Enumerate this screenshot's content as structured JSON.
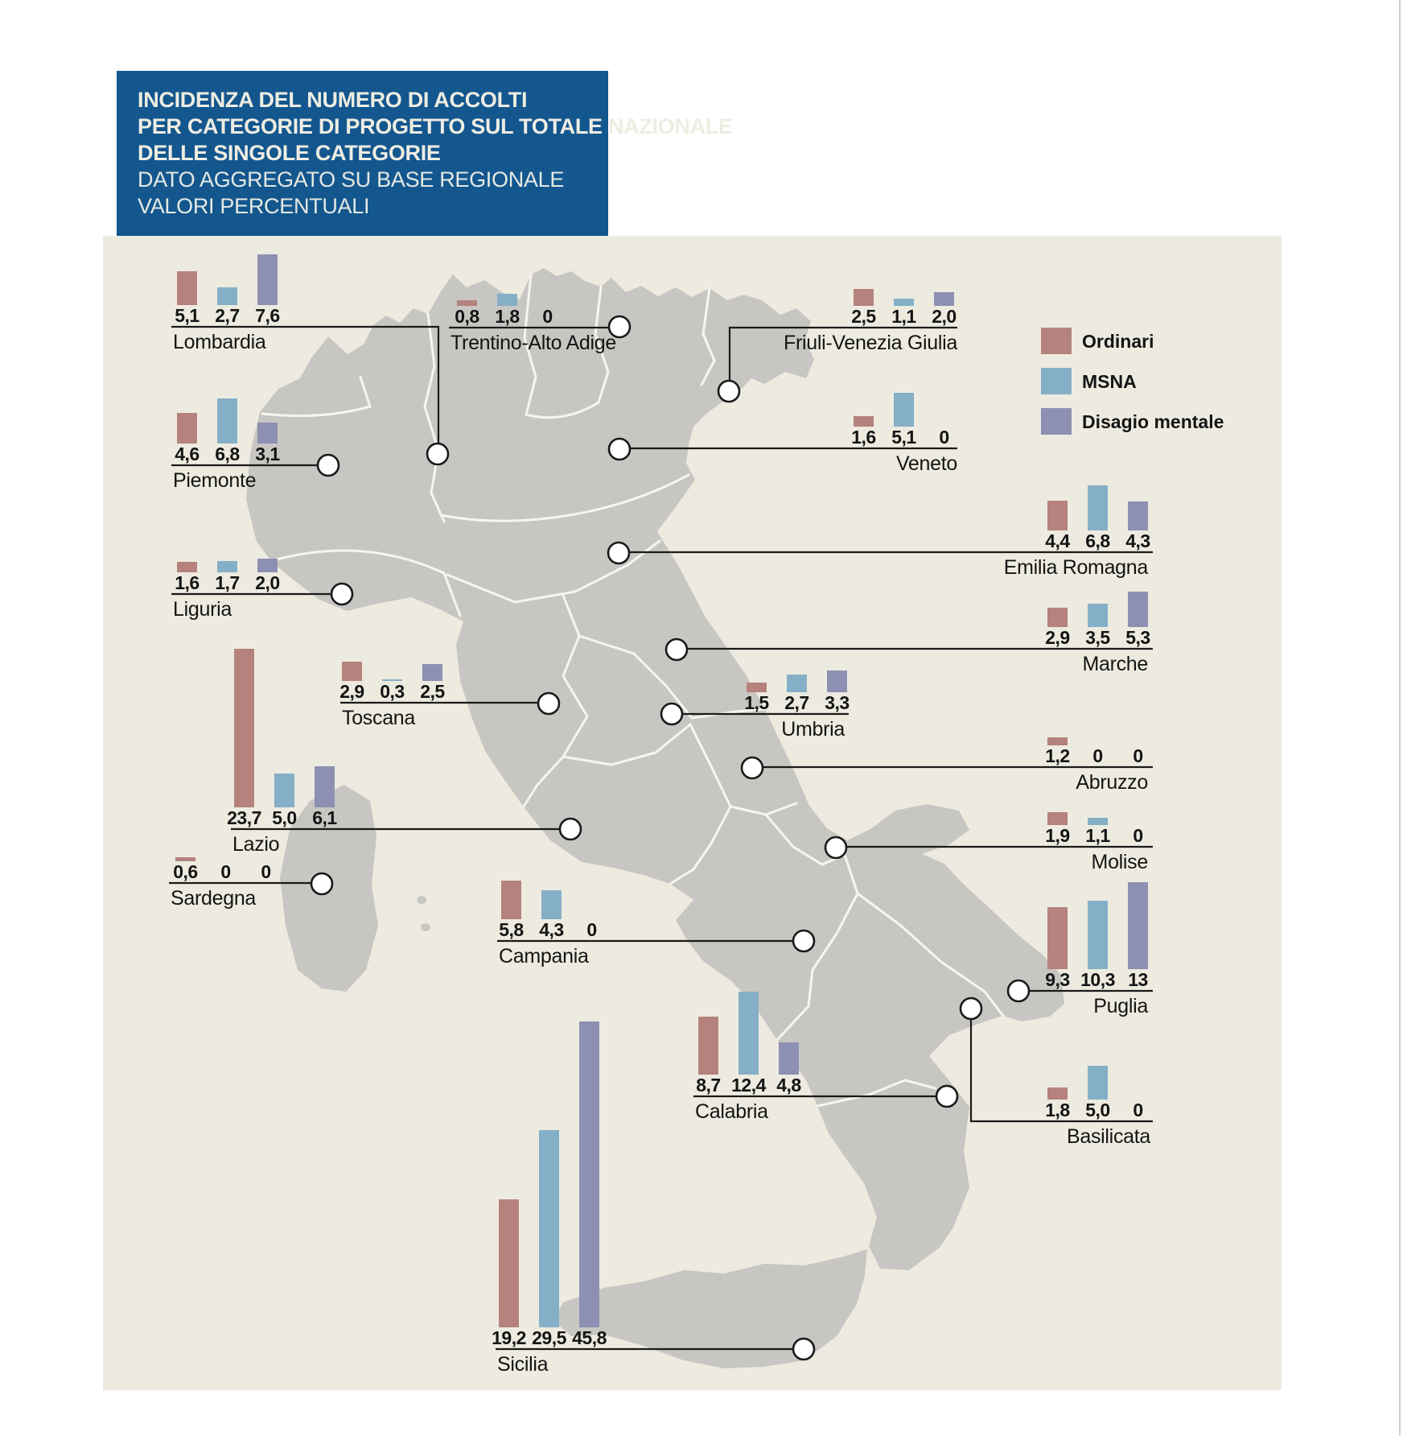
{
  "header": {
    "title_lines": [
      "INCIDENZA DEL NUMERO DI ACCOLTI",
      "PER CATEGORIE DI PROGETTO SUL TOTALE NAZIONALE",
      "DELLE SINGOLE CATEGORIE"
    ],
    "subtitle_lines": [
      "DATO AGGREGATO SU BASE REGIONALE",
      "VALORI PERCENTUALI"
    ]
  },
  "legend": {
    "items": [
      {
        "label": "Ordinari",
        "color": "#b5827d"
      },
      {
        "label": "MSNA",
        "color": "#85afc7"
      },
      {
        "label": "Disagio mentale",
        "color": "#8d90b2"
      }
    ]
  },
  "map": {
    "land_color": "#c8c6c2",
    "panel_color": "#edebe0",
    "border_color": "#f6f5ee",
    "header_color": "#14578f"
  },
  "chart_data": {
    "type": "bar",
    "unit": "percent",
    "title": "Incidenza del numero di accolti per categorie di progetto sul totale nazionale delle singole categorie",
    "subtitle": "Dato aggregato su base regionale, valori percentuali",
    "legend_position": "right",
    "categories": [
      "Lombardia",
      "Trentino-Alto Adige",
      "Friuli-Venezia Giulia",
      "Piemonte",
      "Veneto",
      "Liguria",
      "Emilia Romagna",
      "Toscana",
      "Marche",
      "Umbria",
      "Abruzzo",
      "Lazio",
      "Molise",
      "Campania",
      "Puglia",
      "Sardegna",
      "Calabria",
      "Basilicata",
      "Sicilia"
    ],
    "series": [
      {
        "name": "Ordinari",
        "values": [
          5.1,
          0.8,
          2.5,
          4.6,
          1.6,
          1.6,
          4.4,
          2.9,
          2.9,
          1.5,
          1.2,
          23.7,
          1.9,
          5.8,
          9.3,
          0.6,
          8.7,
          1.8,
          19.2
        ]
      },
      {
        "name": "MSNA",
        "values": [
          2.7,
          1.8,
          1.1,
          6.8,
          5.1,
          1.7,
          6.8,
          0.3,
          3.5,
          2.7,
          0,
          5.0,
          1.1,
          4.3,
          10.3,
          0,
          12.4,
          5.0,
          29.5
        ]
      },
      {
        "name": "Disagio mentale",
        "values": [
          7.6,
          0,
          2.0,
          3.1,
          0,
          2.0,
          4.3,
          2.5,
          5.3,
          3.3,
          0,
          6.1,
          0,
          0,
          13,
          0,
          4.8,
          0,
          45.8
        ]
      }
    ]
  },
  "regions": [
    {
      "name": "Lombardia",
      "values": [
        "5,1",
        "2,7",
        "7,6"
      ]
    },
    {
      "name": "Trentino-Alto Adige",
      "values": [
        "0,8",
        "1,8",
        "0"
      ]
    },
    {
      "name": "Friuli-Venezia Giulia",
      "values": [
        "2,5",
        "1,1",
        "2,0"
      ]
    },
    {
      "name": "Piemonte",
      "values": [
        "4,6",
        "6,8",
        "3,1"
      ]
    },
    {
      "name": "Veneto",
      "values": [
        "1,6",
        "5,1",
        "0"
      ]
    },
    {
      "name": "Liguria",
      "values": [
        "1,6",
        "1,7",
        "2,0"
      ]
    },
    {
      "name": "Emilia Romagna",
      "values": [
        "4,4",
        "6,8",
        "4,3"
      ]
    },
    {
      "name": "Toscana",
      "values": [
        "2,9",
        "0,3",
        "2,5"
      ]
    },
    {
      "name": "Marche",
      "values": [
        "2,9",
        "3,5",
        "5,3"
      ]
    },
    {
      "name": "Umbria",
      "values": [
        "1,5",
        "2,7",
        "3,3"
      ]
    },
    {
      "name": "Abruzzo",
      "values": [
        "1,2",
        "0",
        "0"
      ]
    },
    {
      "name": "Lazio",
      "values": [
        "23,7",
        "5,0",
        "6,1"
      ]
    },
    {
      "name": "Molise",
      "values": [
        "1,9",
        "1,1",
        "0"
      ]
    },
    {
      "name": "Campania",
      "values": [
        "5,8",
        "4,3",
        "0"
      ]
    },
    {
      "name": "Puglia",
      "values": [
        "9,3",
        "10,3",
        "13"
      ]
    },
    {
      "name": "Sardegna",
      "values": [
        "0,6",
        "0",
        "0"
      ]
    },
    {
      "name": "Calabria",
      "values": [
        "8,7",
        "12,4",
        "4,8"
      ]
    },
    {
      "name": "Basilicata",
      "values": [
        "1,8",
        "5,0",
        "0"
      ]
    },
    {
      "name": "Sicilia",
      "values": [
        "19,2",
        "29,5",
        "45,8"
      ]
    }
  ]
}
